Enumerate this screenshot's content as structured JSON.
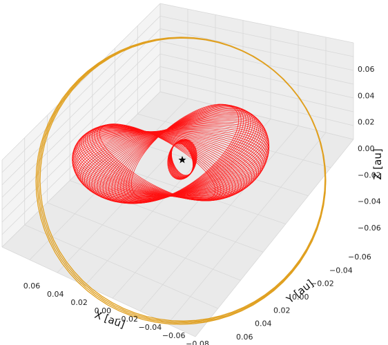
{
  "chart_data": {
    "type": "line",
    "projection": "3d",
    "title": "",
    "xlabel": "X [au]",
    "ylabel": "Y [au]",
    "zlabel": "Z [au]",
    "xticks": [
      "0.06",
      "0.04",
      "0.02",
      "0.00",
      "−0.02",
      "−0.04",
      "−0.06",
      "−0.08"
    ],
    "yticks": [
      "−0.06",
      "−0.04",
      "−0.02",
      "0.00",
      "0.02",
      "0.04",
      "0.06"
    ],
    "zticks": [
      "0.06",
      "0.04",
      "0.02",
      "0.00",
      "−0.02",
      "−0.04",
      "−0.06"
    ],
    "xlim": [
      -0.08,
      0.07
    ],
    "ylim": [
      -0.07,
      0.07
    ],
    "zlim": [
      -0.07,
      0.07
    ],
    "grid": true,
    "central_marker": "star",
    "colors": {
      "outer_orbit": "#e0a020",
      "inner_orbits": "#ff1010",
      "pane": "#f2f2f2",
      "grid": "#d8d8d8"
    },
    "series": [
      {
        "color": "#e0a020",
        "shape": "near-circular orbit",
        "semi_major_axis": 0.066,
        "tilt": "nearly face-on",
        "z_extent": [
          -0.01,
          0.01
        ]
      },
      {
        "color": "#ff1010",
        "shape": "precessing eccentric orbit",
        "semi_major_axis": 0.035,
        "eccentricity": 0.6,
        "z_extent": [
          -0.03,
          0.03
        ]
      },
      {
        "color": "#ff1010",
        "shape": "tight inner orbit",
        "semi_major_axis": 0.01,
        "z_extent": [
          -0.01,
          0.01
        ]
      }
    ]
  }
}
